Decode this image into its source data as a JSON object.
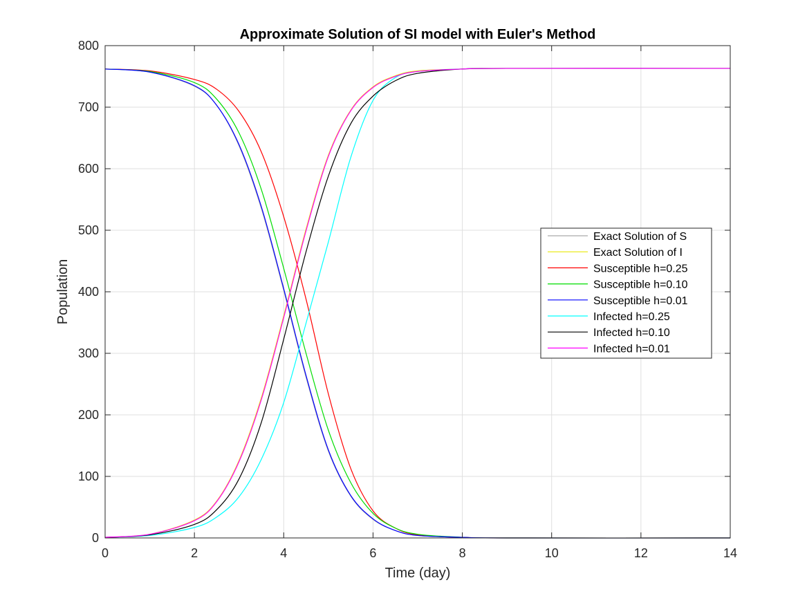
{
  "chart_data": {
    "type": "line",
    "title": "Approximate Solution of SI model with Euler's Method",
    "xlabel": "Time (day)",
    "ylabel": "Population",
    "xlim": [
      0,
      14
    ],
    "ylim": [
      0,
      800
    ],
    "xticks": [
      "0",
      "2",
      "4",
      "6",
      "8",
      "10",
      "12",
      "14"
    ],
    "yticks": [
      "0",
      "100",
      "200",
      "300",
      "400",
      "500",
      "600",
      "700",
      "800"
    ],
    "grid": true,
    "legend_position": "right",
    "series": [
      {
        "name": "Exact Solution of S",
        "color": "#a9a9a9",
        "x": [
          0,
          1,
          2,
          2.5,
          3,
          3.5,
          4,
          4.5,
          5,
          5.5,
          6,
          6.5,
          7,
          8,
          9,
          14
        ],
        "y": [
          762,
          757,
          734,
          703,
          637,
          535,
          402,
          261,
          141,
          68,
          30,
          12,
          4,
          1,
          0,
          0
        ]
      },
      {
        "name": "Exact Solution of I",
        "color": "#e8e800",
        "x": [
          0,
          1,
          2,
          2.5,
          3,
          3.5,
          4,
          4.5,
          5,
          5.5,
          6,
          6.5,
          7,
          8,
          9,
          14
        ],
        "y": [
          1,
          6,
          29,
          60,
          126,
          228,
          361,
          502,
          622,
          695,
          733,
          751,
          759,
          762,
          763,
          763
        ]
      },
      {
        "name": "Susceptible h=0.25",
        "color": "#ff0000",
        "x": [
          0,
          1,
          2,
          2.5,
          3,
          3.5,
          4,
          4.5,
          5,
          5.5,
          6,
          6.5,
          7,
          8,
          9,
          14
        ],
        "y": [
          762,
          759,
          745,
          729,
          693,
          627,
          522,
          388,
          234,
          113,
          44,
          16,
          5,
          1,
          0,
          0
        ]
      },
      {
        "name": "Susceptible h=0.10",
        "color": "#00dd00",
        "x": [
          0,
          1,
          2,
          2.5,
          3,
          3.5,
          4,
          4.5,
          5,
          5.5,
          6,
          6.5,
          7,
          8,
          9,
          14
        ],
        "y": [
          762,
          758,
          740,
          713,
          658,
          566,
          438,
          300,
          175,
          90,
          40,
          16,
          6,
          1,
          0,
          0
        ]
      },
      {
        "name": "Susceptible h=0.01",
        "color": "#0000ff",
        "x": [
          0,
          1,
          2,
          2.5,
          3,
          3.5,
          4,
          4.5,
          5,
          5.5,
          6,
          6.5,
          7,
          8,
          9,
          14
        ],
        "y": [
          762,
          757,
          735,
          703,
          639,
          538,
          405,
          264,
          143,
          69,
          31,
          12,
          4,
          1,
          0,
          0
        ]
      },
      {
        "name": "Infected h=0.25",
        "color": "#00ffff",
        "x": [
          0,
          1,
          2,
          2.5,
          3,
          3.5,
          4,
          4.5,
          5,
          5.5,
          6,
          6.5,
          7,
          8,
          9,
          14
        ],
        "y": [
          1,
          4,
          17,
          34,
          67,
          128,
          220,
          349,
          481,
          618,
          711,
          748,
          758,
          762,
          763,
          763
        ]
      },
      {
        "name": "Infected h=0.10",
        "color": "#000000",
        "x": [
          0,
          1,
          2,
          2.5,
          3,
          3.5,
          4,
          4.5,
          5,
          5.5,
          6,
          6.5,
          7,
          8,
          9,
          14
        ],
        "y": [
          1,
          5,
          22,
          46,
          96,
          188,
          323,
          465,
          588,
          673,
          718,
          743,
          755,
          762,
          763,
          763
        ]
      },
      {
        "name": "Infected h=0.01",
        "color": "#ff00ff",
        "x": [
          0,
          1,
          2,
          2.5,
          3,
          3.5,
          4,
          4.5,
          5,
          5.5,
          6,
          6.5,
          7,
          8,
          9,
          14
        ],
        "y": [
          1,
          6,
          28,
          59,
          124,
          225,
          358,
          499,
          620,
          694,
          732,
          750,
          758,
          762,
          763,
          763
        ]
      }
    ]
  }
}
